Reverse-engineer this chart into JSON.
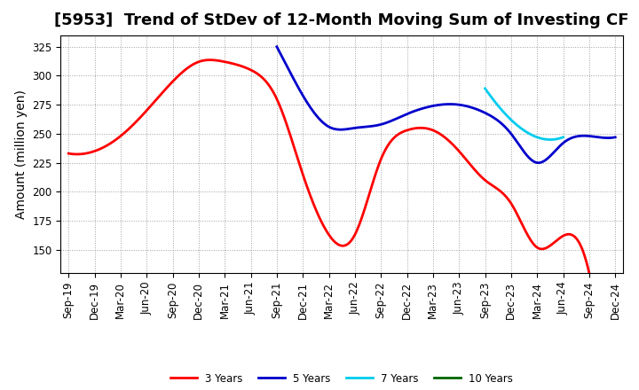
{
  "title": "[5953]  Trend of StDev of 12-Month Moving Sum of Investing CF",
  "ylabel": "Amount (million yen)",
  "background_color": "#ffffff",
  "grid_color": "#888888",
  "ylim": [
    130,
    335
  ],
  "yticks": [
    150,
    175,
    200,
    225,
    250,
    275,
    300,
    325
  ],
  "x_labels": [
    "Sep-19",
    "Dec-19",
    "Mar-20",
    "Jun-20",
    "Sep-20",
    "Dec-20",
    "Mar-21",
    "Jun-21",
    "Sep-21",
    "Dec-21",
    "Mar-22",
    "Jun-22",
    "Sep-22",
    "Dec-22",
    "Mar-23",
    "Jun-23",
    "Sep-23",
    "Dec-23",
    "Mar-24",
    "Jun-24",
    "Sep-24",
    "Dec-24"
  ],
  "series": {
    "3yr": {
      "color": "#ff0000",
      "label": "3 Years",
      "x": [
        0,
        1,
        2,
        3,
        4,
        5,
        6,
        7,
        8,
        9,
        10,
        11,
        12,
        13,
        14,
        15,
        16,
        17,
        18,
        19,
        20
      ],
      "y": [
        233,
        235,
        248,
        270,
        295,
        312,
        312,
        305,
        280,
        215,
        163,
        163,
        228,
        253,
        253,
        235,
        210,
        190,
        152,
        162,
        130
      ]
    },
    "5yr": {
      "color": "#0000cc",
      "label": "5 Years",
      "x": [
        8,
        9,
        10,
        11,
        12,
        13,
        14,
        15,
        16,
        17,
        18,
        19,
        20,
        21
      ],
      "y": [
        325,
        283,
        256,
        255,
        258,
        267,
        274,
        275,
        268,
        250,
        225,
        242,
        248,
        247
      ]
    },
    "7yr": {
      "color": "#00ccee",
      "label": "7 Years",
      "x": [
        16,
        17,
        18,
        19
      ],
      "y": [
        289,
        262,
        247,
        247
      ]
    },
    "10yr": {
      "color": "#006600",
      "label": "10 Years",
      "x": [],
      "y": []
    }
  },
  "title_fontsize": 13,
  "label_fontsize": 10,
  "tick_fontsize": 8.5
}
